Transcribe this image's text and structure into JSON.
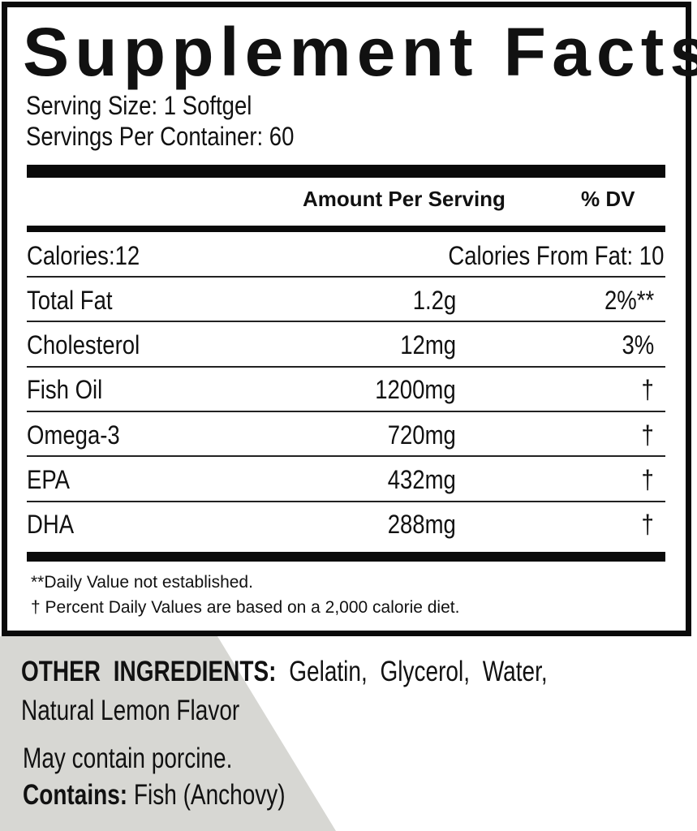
{
  "title": "Supplement Facts",
  "serving_size": "Serving Size: 1 Softgel",
  "servings_per_container": "Servings Per Container: 60",
  "header": {
    "amount": "Amount Per Serving",
    "dv": "% DV"
  },
  "calories": "Calories:12",
  "calories_from_fat": "Calories From Fat: 10",
  "rows": [
    {
      "name": "Total Fat",
      "amount": "1.2g",
      "dv": "2%**"
    },
    {
      "name": "Cholesterol",
      "amount": "12mg",
      "dv": "3%"
    },
    {
      "name": "Fish Oil",
      "amount": "1200mg",
      "dv": "†"
    },
    {
      "name": "Omega-3",
      "amount": "720mg",
      "dv": "†"
    },
    {
      "name": "EPA",
      "amount": "432mg",
      "dv": "†"
    },
    {
      "name": "DHA",
      "amount": "288mg",
      "dv": "†"
    }
  ],
  "footnotes": [
    "**Daily Value not established.",
    "† Percent Daily Values are based on a 2,000 calorie diet."
  ],
  "other_ingredients": {
    "label": "OTHER INGREDIENTS:",
    "value": "Gelatin, Glycerol, Water,",
    "value2": "Natural Lemon Flavor"
  },
  "may_contain": "May contain porcine.",
  "contains": {
    "label": "Contains:",
    "value": "Fish (Anchovy)"
  },
  "colors": {
    "background_accent": "#d7d7d3",
    "ink": "#0a0a0a"
  }
}
